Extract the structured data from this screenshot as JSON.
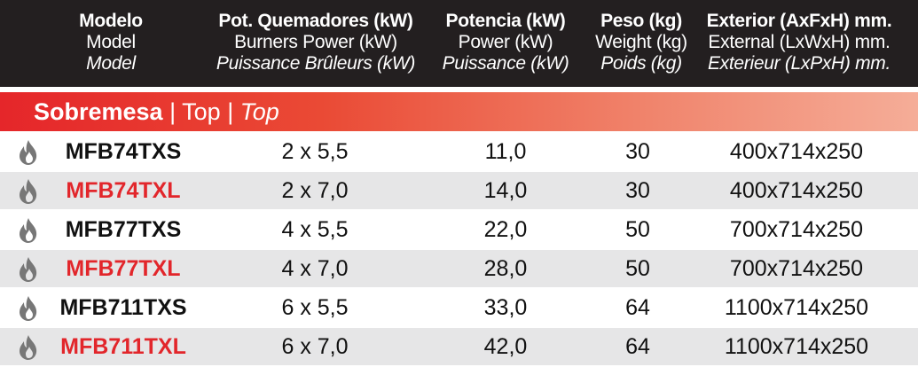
{
  "header": {
    "model": [
      "Modelo",
      "Model",
      "Model"
    ],
    "burners": [
      "Pot. Quemadores (kW)",
      "Burners Power (kW)",
      "Puissance Brûleurs (kW)"
    ],
    "power": [
      "Potencia (kW)",
      "Power (kW)",
      "Puissance (kW)"
    ],
    "weight": [
      "Peso (kg)",
      "Weight (kg)",
      "Poids (kg)"
    ],
    "external": [
      "Exterior (AxFxH) mm.",
      "External (LxWxH) mm.",
      "Exterieur (LxPxH) mm."
    ]
  },
  "section": {
    "es": "Sobremesa",
    "sep1": "|",
    "en": "Top",
    "sep2": "|",
    "fr": "Top"
  },
  "rows": [
    {
      "icon": "flame-icon",
      "model": "MFB74TXS",
      "burners": "2 x 5,5",
      "power": "11,0",
      "weight": "30",
      "external": "400x714x250"
    },
    {
      "icon": "flame-icon",
      "model": "MFB74TXL",
      "burners": "2 x 7,0",
      "power": "14,0",
      "weight": "30",
      "external": "400x714x250"
    },
    {
      "icon": "flame-icon",
      "model": "MFB77TXS",
      "burners": "4 x 5,5",
      "power": "22,0",
      "weight": "50",
      "external": "700x714x250"
    },
    {
      "icon": "flame-icon",
      "model": "MFB77TXL",
      "burners": "4 x 7,0",
      "power": "28,0",
      "weight": "50",
      "external": "700x714x250"
    },
    {
      "icon": "flame-icon",
      "model": "MFB711TXS",
      "burners": "6 x 5,5",
      "power": "33,0",
      "weight": "64",
      "external": "1100x714x250"
    },
    {
      "icon": "flame-icon",
      "model": "MFB711TXL",
      "burners": "6 x 7,0",
      "power": "42,0",
      "weight": "64",
      "external": "1100x714x250"
    }
  ],
  "colors": {
    "header_bg": "#231f20",
    "accent_red": "#e2262b",
    "alt_row_bg": "#e6e6e7",
    "icon_gray": "#777777"
  }
}
